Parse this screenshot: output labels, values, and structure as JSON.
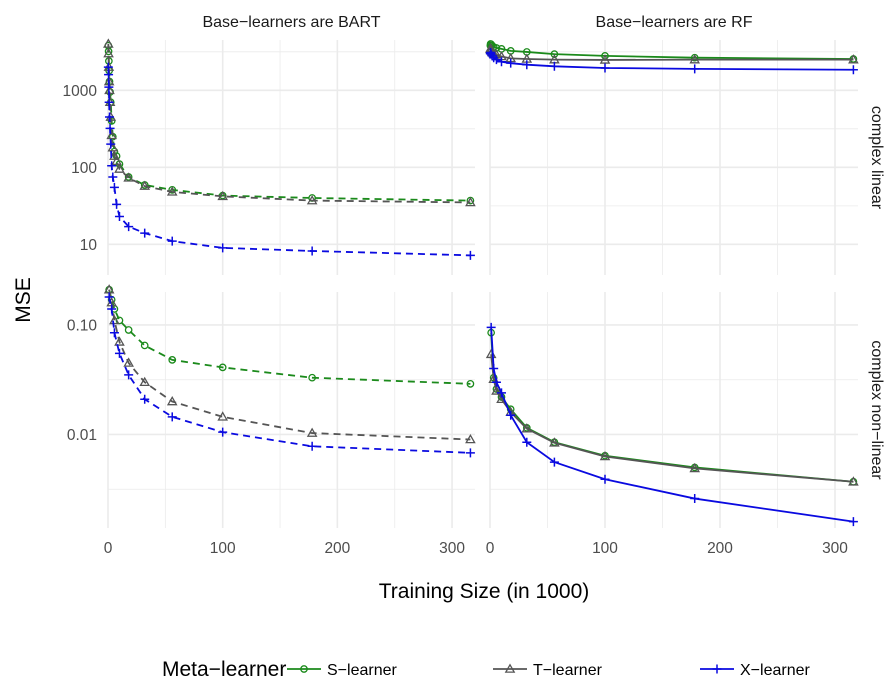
{
  "figure": {
    "y_axis_label": "MSE",
    "x_axis_label": "Training Size (in 1000)",
    "column_strips": [
      "Base−learners are BART",
      "Base−learners are RF"
    ],
    "row_strips": [
      "complex linear",
      "complex non−linear"
    ],
    "legend_title": "Meta−learner",
    "colors": {
      "S": "#1b8a1b",
      "T": "#555555",
      "X": "#0a0ae0",
      "grid": "#ebebeb"
    }
  },
  "chart_data": {
    "type": "line",
    "layout": "facet grid 2x2",
    "xlabel": "Training Size (in 1000)",
    "ylabel": "MSE",
    "y_scale": "log10",
    "grid": true,
    "legend_position": "bottom",
    "x_range": [
      0,
      320
    ],
    "x_ticks": [
      0,
      100,
      200,
      300
    ],
    "x_tick_labels": [
      "0",
      "100",
      "200",
      "300"
    ],
    "legend": [
      {
        "key": "S",
        "label": "S−learner",
        "marker": "circle"
      },
      {
        "key": "T",
        "label": "T−learner",
        "marker": "triangle"
      },
      {
        "key": "X",
        "label": "X−learner",
        "marker": "plus"
      }
    ],
    "rows": [
      {
        "label": "complex linear",
        "y_range": [
          4,
          4500
        ],
        "y_ticks": [
          10,
          100,
          1000
        ],
        "y_tick_labels": [
          "10",
          "100",
          "1000"
        ]
      },
      {
        "label": "complex non−linear",
        "y_range": [
          0.0014,
          0.2
        ],
        "y_ticks": [
          0.01,
          0.1
        ],
        "y_tick_labels": [
          "0.01",
          "0.10"
        ]
      }
    ],
    "panels": [
      {
        "column": "Base−learners are BART",
        "row": "complex linear",
        "line_style": "dashed",
        "series": [
          {
            "name": "S−learner",
            "key": "S",
            "x": [
              0.3,
              0.5,
              0.75,
              1,
              1.3,
              1.8,
              2.4,
              3.2,
              4.2,
              5.6,
              7.5,
              10,
              18,
              32,
              56,
              100,
              178,
              316
            ],
            "y": [
              3800,
              3200,
              2400,
              1800,
              1300,
              950,
              700,
              400,
              250,
              160,
              140,
              110,
              75,
              59,
              51,
              43,
              40,
              37
            ]
          },
          {
            "name": "T−learner",
            "key": "T",
            "x": [
              0.3,
              0.5,
              0.75,
              1,
              1.3,
              1.8,
              2.4,
              3.2,
              4.2,
              5.6,
              7.5,
              10,
              18,
              32,
              56,
              100,
              178,
              316
            ],
            "y": [
              4000,
              3000,
              2000,
              1300,
              1000,
              700,
              450,
              260,
              180,
              140,
              120,
              95,
              73,
              57,
              48,
              42,
              37,
              35
            ]
          },
          {
            "name": "X−learner",
            "key": "X",
            "x": [
              0.3,
              0.5,
              0.75,
              1,
              1.3,
              1.8,
              2.4,
              3.2,
              4.2,
              5.6,
              7.5,
              10,
              18,
              32,
              56,
              100,
              178,
              316
            ],
            "y": [
              2000,
              1600,
              1100,
              700,
              450,
              320,
              200,
              105,
              75,
              55,
              33,
              23,
              17,
              14,
              11,
              9,
              8.2,
              7.2
            ]
          }
        ]
      },
      {
        "column": "Base−learners are RF",
        "row": "complex linear",
        "line_style": "solid",
        "series": [
          {
            "name": "S−learner",
            "key": "S",
            "x": [
              0.3,
              0.5,
              1,
              1.8,
              3.2,
              5.6,
              10,
              18,
              32,
              56,
              100,
              178,
              316
            ],
            "y": [
              3800,
              4000,
              3950,
              3800,
              3650,
              3550,
              3450,
              3250,
              3150,
              2950,
              2800,
              2650,
              2550
            ]
          },
          {
            "name": "T−learner",
            "key": "T",
            "x": [
              0.3,
              0.5,
              1,
              1.8,
              3.2,
              5.6,
              10,
              18,
              32,
              56,
              100,
              178,
              316
            ],
            "y": [
              3400,
              3500,
              3350,
              3150,
              3000,
              2900,
              2750,
              2600,
              2550,
              2500,
              2480,
              2500,
              2500
            ]
          },
          {
            "name": "X−learner",
            "key": "X",
            "x": [
              0.3,
              0.5,
              1,
              1.8,
              3.2,
              5.6,
              10,
              18,
              32,
              56,
              100,
              178,
              316
            ],
            "y": [
              3000,
              3100,
              2950,
              2800,
              2650,
              2500,
              2350,
              2250,
              2150,
              2050,
              1950,
              1900,
              1850
            ]
          }
        ]
      },
      {
        "column": "Base−learners are BART",
        "row": "complex non−linear",
        "line_style": "dashed",
        "series": [
          {
            "name": "S−learner",
            "key": "S",
            "x": [
              1,
              3.2,
              5.6,
              10,
              18,
              32,
              56,
              100,
              178,
              316
            ],
            "y": [
              0.21,
              0.17,
              0.14,
              0.11,
              0.09,
              0.065,
              0.048,
              0.041,
              0.033,
              0.029
            ]
          },
          {
            "name": "T−learner",
            "key": "T",
            "x": [
              1,
              3.2,
              5.6,
              10,
              18,
              32,
              56,
              100,
              178,
              316
            ],
            "y": [
              0.21,
              0.16,
              0.11,
              0.07,
              0.045,
              0.03,
              0.02,
              0.0145,
              0.0103,
              0.009
            ]
          },
          {
            "name": "X−learner",
            "key": "X",
            "x": [
              1,
              3.2,
              5.6,
              10,
              18,
              32,
              56,
              100,
              178,
              316
            ],
            "y": [
              0.18,
              0.14,
              0.085,
              0.055,
              0.035,
              0.021,
              0.0145,
              0.0105,
              0.0078,
              0.0068
            ]
          }
        ]
      },
      {
        "column": "Base−learners are RF",
        "row": "complex non−linear",
        "line_style": "solid",
        "series": [
          {
            "name": "S−learner",
            "key": "S",
            "x": [
              1,
              3.2,
              5.6,
              10,
              18,
              32,
              56,
              100,
              178,
              316
            ],
            "y": [
              0.085,
              0.033,
              0.026,
              0.022,
              0.017,
              0.0115,
              0.0085,
              0.0064,
              0.005,
              0.0037
            ]
          },
          {
            "name": "T−learner",
            "key": "T",
            "x": [
              1,
              3.2,
              5.6,
              10,
              18,
              32,
              56,
              100,
              178,
              316
            ],
            "y": [
              0.054,
              0.032,
              0.025,
              0.021,
              0.016,
              0.0113,
              0.0084,
              0.0063,
              0.0049,
              0.0037
            ]
          },
          {
            "name": "X−learner",
            "key": "X",
            "x": [
              1,
              3.2,
              5.6,
              10,
              18,
              32,
              56,
              100,
              178,
              316
            ],
            "y": [
              0.095,
              0.04,
              0.03,
              0.024,
              0.015,
              0.0085,
              0.0056,
              0.0039,
              0.0026,
              0.0016
            ]
          }
        ]
      }
    ]
  }
}
